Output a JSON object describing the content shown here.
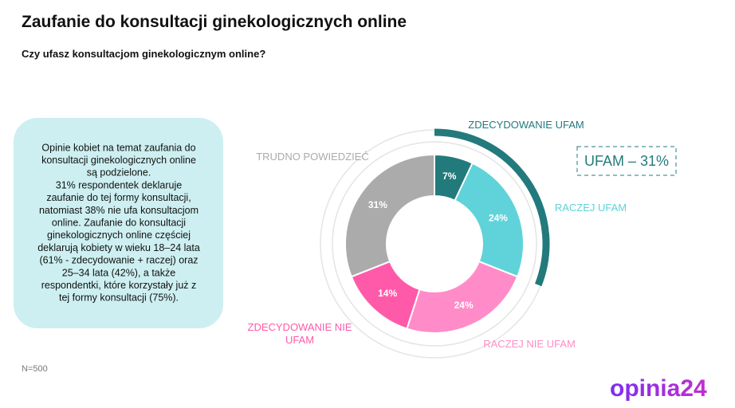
{
  "chart_data": {
    "type": "pie",
    "title": "Zaufanie do konsultacji ginekologicznych online",
    "subtitle": "Czy ufasz konsultacjom ginekologicznym online?",
    "categories": [
      "ZDECYDOWANIE UFAM",
      "RACZEJ UFAM",
      "RACZEJ NIE UFAM",
      "ZDECYDOWANIE NIE UFAM",
      "TRUDNO POWIEDZIEĆ"
    ],
    "values": [
      7,
      24,
      24,
      14,
      31
    ],
    "value_labels": [
      "7%",
      "24%",
      "24%",
      "14%",
      "31%"
    ],
    "colors": [
      "#237a7c",
      "#5fd3d9",
      "#ff8cc8",
      "#ff5aa9",
      "#ababab"
    ],
    "highlight": {
      "value": 31,
      "label": "UFAM – 31%",
      "color": "#237a7c"
    }
  },
  "note": [
    "Opinie kobiet na temat zaufania do",
    "konsultacji ginekologicznych online",
    "są podzielone.",
    "31% respondentek deklaruje",
    "zaufanie do tej formy konsultacji,",
    "natomiast 38% nie ufa konsultacjom",
    "online. Zaufanie do konsultacji",
    "ginekologicznych online częściej",
    "deklarują kobiety w wieku 18–24 lata",
    "(61% - zdecydowanie + raczej) oraz",
    "25–34 lata (42%), a także",
    "respondentki, które korzystały już z",
    "tej formy konsultacji (75%)."
  ],
  "sample": "N=500",
  "logo": "opinia24"
}
